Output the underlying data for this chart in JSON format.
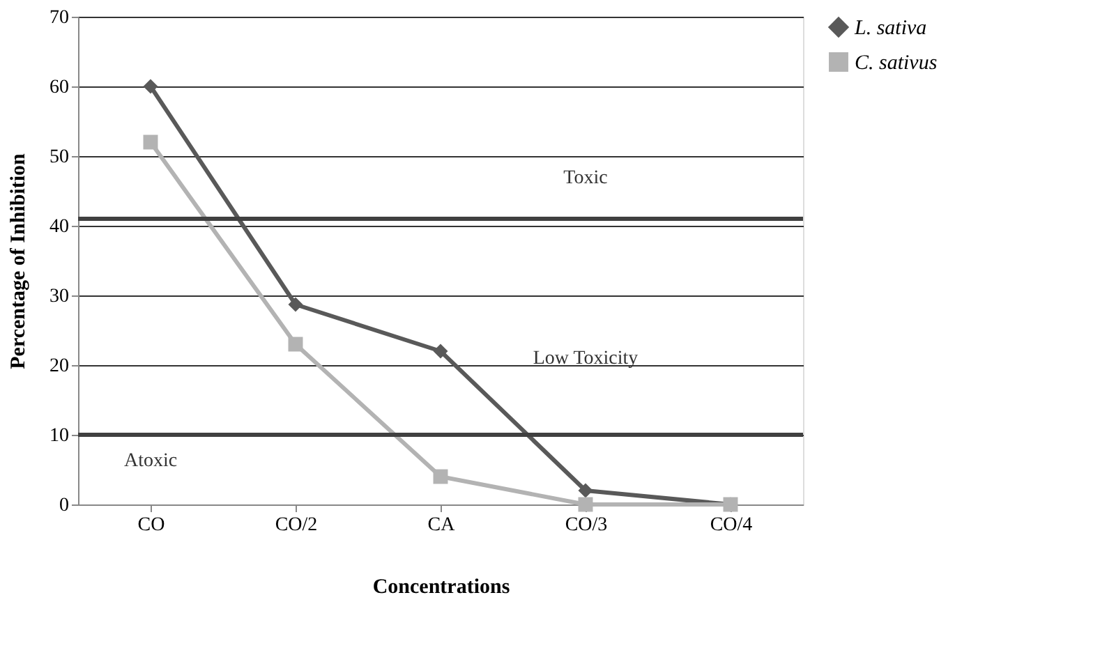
{
  "chart_data": {
    "type": "line",
    "xlabel": "Concentrations",
    "ylabel": "Percentage of Inhibition",
    "categories": [
      "CO",
      "CO/2",
      "CA",
      "CO/3",
      "CO/4"
    ],
    "series": [
      {
        "name": "L. sativa",
        "color": "#595959",
        "marker": "diamond",
        "values": [
          60,
          28.7,
          22,
          2,
          0
        ]
      },
      {
        "name": "C. sativus",
        "color": "#b3b3b3",
        "marker": "square",
        "values": [
          52,
          23,
          4,
          0,
          0
        ]
      }
    ],
    "ylim": [
      0,
      70
    ],
    "yticks": [
      0,
      10,
      20,
      30,
      40,
      50,
      60,
      70
    ],
    "grid": "y",
    "legend": "right",
    "line_style": "solid",
    "ref_lines": [
      {
        "axis": "y",
        "value": 41,
        "color": "#404040"
      },
      {
        "axis": "y",
        "value": 10,
        "color": "#404040"
      }
    ],
    "annotations": [
      "Toxic",
      "Low Toxicity",
      "Atoxic"
    ]
  }
}
